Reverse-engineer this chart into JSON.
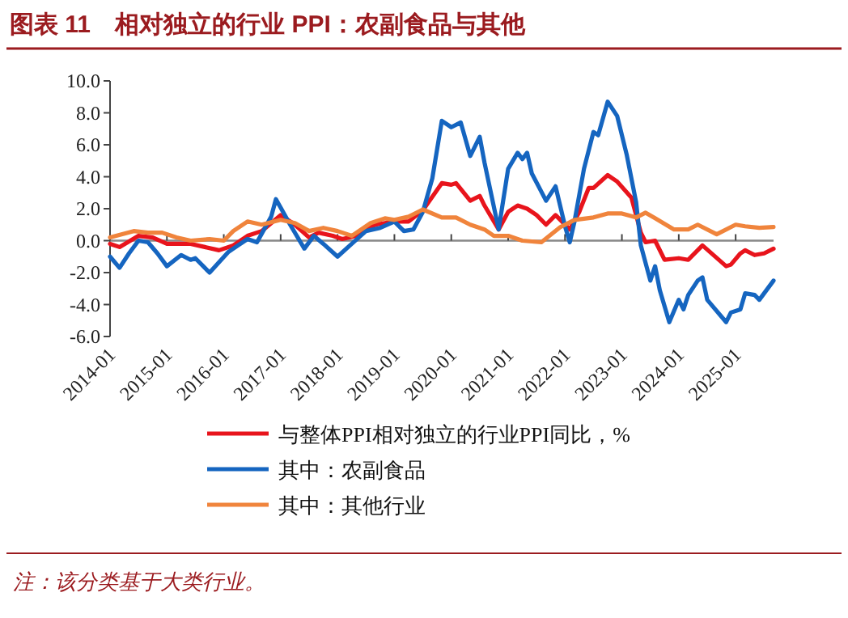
{
  "chart_data": {
    "type": "line",
    "title": "图表 11　相对独立的行业 PPI：农副食品与其他",
    "annotations": [
      "注：该分类基于大类行业。"
    ],
    "xlim": [
      "2014-01",
      "2025-09"
    ],
    "xticks": [
      "2014-01",
      "2015-01",
      "2016-01",
      "2017-01",
      "2018-01",
      "2019-01",
      "2020-01",
      "2021-01",
      "2022-01",
      "2023-01",
      "2024-01",
      "2025-01"
    ],
    "ylim": [
      -6,
      10
    ],
    "yticks": [
      {
        "value": -6,
        "label": "-6.0"
      },
      {
        "value": -4,
        "label": "-4.0"
      },
      {
        "value": -2,
        "label": "-2.0"
      },
      {
        "value": 0,
        "label": "0.0"
      },
      {
        "value": 2,
        "label": "2.0"
      },
      {
        "value": 4,
        "label": "4.0"
      },
      {
        "value": 6,
        "label": "6.0"
      },
      {
        "value": 8,
        "label": "8.0"
      },
      {
        "value": 10,
        "label": "10.0"
      }
    ],
    "legend": "bottom",
    "marker": "none",
    "line_style": "solid",
    "series": [
      {
        "name": "与整体PPI相对独立的行业PPI同比，%",
        "color": "#e8141c",
        "x": [
          "2014-01",
          "2014-03",
          "2014-07",
          "2014-10",
          "2015-01",
          "2015-06",
          "2015-09",
          "2015-12",
          "2016-03",
          "2016-06",
          "2016-09",
          "2017-01",
          "2017-04",
          "2017-07",
          "2017-09",
          "2017-12",
          "2018-02",
          "2018-05",
          "2018-09",
          "2019-01",
          "2019-04",
          "2019-07",
          "2019-11",
          "2020-01",
          "2020-02",
          "2020-05",
          "2020-07",
          "2020-08",
          "2020-11",
          "2021-01",
          "2021-03",
          "2021-05",
          "2021-07",
          "2021-09",
          "2021-11",
          "2022-02",
          "2022-04",
          "2022-06",
          "2022-07",
          "2022-10",
          "2022-12",
          "2023-03",
          "2023-05",
          "2023-06",
          "2023-08",
          "2023-10",
          "2024-01",
          "2024-03",
          "2024-06",
          "2024-11",
          "2024-12",
          "2025-02",
          "2025-03",
          "2025-05",
          "2025-07",
          "2025-09"
        ],
        "values": [
          -0.2,
          -0.4,
          0.3,
          0.2,
          -0.2,
          -0.2,
          -0.4,
          -0.6,
          -0.3,
          0.3,
          0.6,
          1.6,
          1.0,
          0.2,
          0.5,
          0.3,
          0.1,
          0.3,
          1.0,
          1.2,
          1.2,
          1.9,
          3.6,
          3.5,
          3.6,
          2.5,
          2.8,
          2.2,
          0.7,
          1.8,
          2.2,
          2.0,
          1.6,
          1.0,
          1.6,
          0.7,
          1.8,
          3.3,
          3.3,
          4.1,
          3.7,
          2.7,
          0.5,
          -0.1,
          0.0,
          -1.2,
          -1.1,
          -1.2,
          -0.3,
          -1.6,
          -1.5,
          -0.8,
          -0.6,
          -0.9,
          -0.8,
          -0.5
        ]
      },
      {
        "name": "其中：农副食品",
        "color": "#1565c0",
        "x": [
          "2014-01",
          "2014-03",
          "2014-05",
          "2014-07",
          "2014-09",
          "2014-11",
          "2015-01",
          "2015-04",
          "2015-06",
          "2015-07",
          "2015-10",
          "2016-02",
          "2016-04",
          "2016-06",
          "2016-08",
          "2016-11",
          "2016-12",
          "2017-03",
          "2017-06",
          "2017-08",
          "2017-10",
          "2018-01",
          "2018-04",
          "2018-07",
          "2018-10",
          "2019-01",
          "2019-03",
          "2019-05",
          "2019-07",
          "2019-09",
          "2019-11",
          "2020-01",
          "2020-03",
          "2020-05",
          "2020-07",
          "2020-08",
          "2020-11",
          "2021-01",
          "2021-03",
          "2021-04",
          "2021-05",
          "2021-06",
          "2021-09",
          "2021-11",
          "2022-01",
          "2022-02",
          "2022-03",
          "2022-05",
          "2022-07",
          "2022-08",
          "2022-10",
          "2022-12",
          "2023-02",
          "2023-04",
          "2023-05",
          "2023-07",
          "2023-08",
          "2023-09",
          "2023-11",
          "2024-01",
          "2024-02",
          "2024-03",
          "2024-05",
          "2024-06",
          "2024-07",
          "2024-11",
          "2024-12",
          "2025-02",
          "2025-03",
          "2025-05",
          "2025-06",
          "2025-09"
        ],
        "values": [
          -1.0,
          -1.7,
          -0.8,
          0.0,
          -0.1,
          -0.8,
          -1.6,
          -0.9,
          -1.2,
          -1.1,
          -2.0,
          -0.7,
          -0.3,
          0.1,
          -0.1,
          1.5,
          2.6,
          1.0,
          -0.5,
          0.3,
          -0.2,
          -1.0,
          -0.2,
          0.6,
          0.8,
          1.2,
          0.6,
          0.7,
          1.8,
          3.9,
          7.5,
          7.1,
          7.4,
          5.3,
          6.5,
          4.9,
          0.7,
          4.5,
          5.5,
          5.1,
          5.5,
          4.2,
          2.5,
          3.4,
          0.9,
          -0.1,
          1.2,
          4.5,
          6.8,
          6.6,
          8.7,
          7.8,
          5.4,
          2.4,
          -0.3,
          -2.5,
          -1.6,
          -3.1,
          -5.1,
          -3.7,
          -4.3,
          -3.4,
          -2.5,
          -2.3,
          -3.7,
          -5.1,
          -4.5,
          -4.3,
          -3.3,
          -3.4,
          -3.7,
          -2.5
        ]
      },
      {
        "name": "其中：其他行业",
        "color": "#f0843c",
        "x": [
          "2014-01",
          "2014-06",
          "2014-09",
          "2014-12",
          "2015-03",
          "2015-06",
          "2015-10",
          "2016-01",
          "2016-03",
          "2016-06",
          "2016-09",
          "2017-01",
          "2017-04",
          "2017-07",
          "2017-10",
          "2018-01",
          "2018-04",
          "2018-08",
          "2018-11",
          "2019-01",
          "2019-04",
          "2019-07",
          "2019-11",
          "2020-02",
          "2020-05",
          "2020-08",
          "2020-10",
          "2021-01",
          "2021-04",
          "2021-08",
          "2021-12",
          "2022-03",
          "2022-07",
          "2022-10",
          "2023-01",
          "2023-04",
          "2023-06",
          "2023-08",
          "2023-12",
          "2024-03",
          "2024-05",
          "2024-09",
          "2025-01",
          "2025-03",
          "2025-06",
          "2025-09"
        ],
        "values": [
          0.2,
          0.6,
          0.5,
          0.5,
          0.2,
          0.0,
          0.1,
          0.0,
          0.6,
          1.2,
          1.0,
          1.3,
          1.1,
          0.6,
          0.8,
          0.6,
          0.3,
          1.1,
          1.4,
          1.3,
          1.5,
          1.95,
          1.45,
          1.45,
          1.0,
          0.7,
          0.3,
          0.3,
          0.0,
          -0.1,
          0.85,
          1.3,
          1.45,
          1.7,
          1.7,
          1.45,
          1.75,
          1.4,
          0.7,
          0.7,
          1.0,
          0.4,
          1.0,
          0.9,
          0.8,
          0.85
        ]
      }
    ]
  }
}
